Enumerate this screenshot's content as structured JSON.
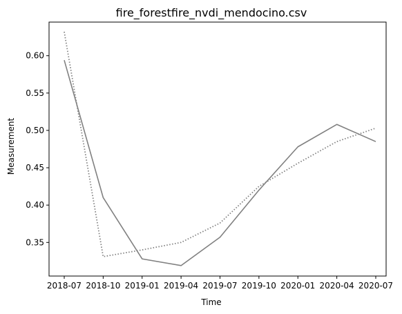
{
  "chart_data": {
    "type": "line",
    "title": "fire_forestfire_nvdi_mendocino.csv",
    "xlabel": "Time",
    "ylabel": "Measurement",
    "x": [
      "2018-07",
      "2018-10",
      "2019-01",
      "2019-04",
      "2019-07",
      "2019-10",
      "2020-01",
      "2020-04",
      "2020-07"
    ],
    "x_tick_labels": [
      "2018-07",
      "2018-10",
      "2019-01",
      "2019-04",
      "2019-07",
      "2019-10",
      "2020-01",
      "2020-04",
      "2020-07"
    ],
    "y_ticks": [
      0.35,
      0.4,
      0.45,
      0.5,
      0.55,
      0.6
    ],
    "y_tick_labels": [
      "0.35",
      "0.40",
      "0.45",
      "0.50",
      "0.55",
      "0.60"
    ],
    "ylim": [
      0.305,
      0.645
    ],
    "grid": false,
    "legend": "none",
    "series": [
      {
        "style": "solid",
        "color": "#808080",
        "values": [
          0.594,
          0.41,
          0.328,
          0.319,
          0.357,
          0.42,
          0.478,
          0.508,
          0.485
        ]
      },
      {
        "style": "dotted",
        "color": "#808080",
        "values": [
          0.632,
          0.331,
          0.34,
          0.35,
          0.376,
          0.425,
          0.456,
          0.485,
          0.503
        ]
      }
    ]
  }
}
